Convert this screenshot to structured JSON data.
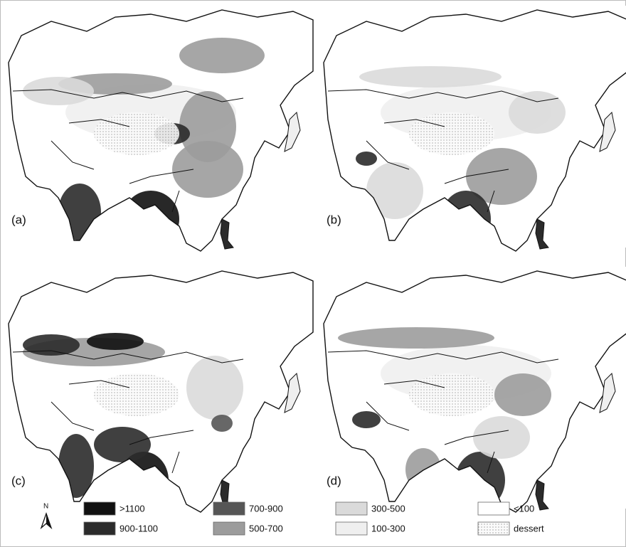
{
  "panels": [
    {
      "label": "(a)"
    },
    {
      "label": "(b)"
    },
    {
      "label": "(c)"
    },
    {
      "label": "(d)"
    }
  ],
  "legend": {
    "north": "N",
    "items": [
      {
        "label": ">1100",
        "color": "#111111"
      },
      {
        "label": "900-1100",
        "color": "#2b2b2b"
      },
      {
        "label": "700-900",
        "color": "#565656"
      },
      {
        "label": "500-700",
        "color": "#9c9c9c"
      },
      {
        "label": "300-500",
        "color": "#dadada"
      },
      {
        "label": "100-300",
        "color": "#efefef"
      },
      {
        "label": "<100",
        "color": "#ffffff"
      },
      {
        "label": "dessert",
        "color": "#cdcdcd"
      }
    ]
  }
}
